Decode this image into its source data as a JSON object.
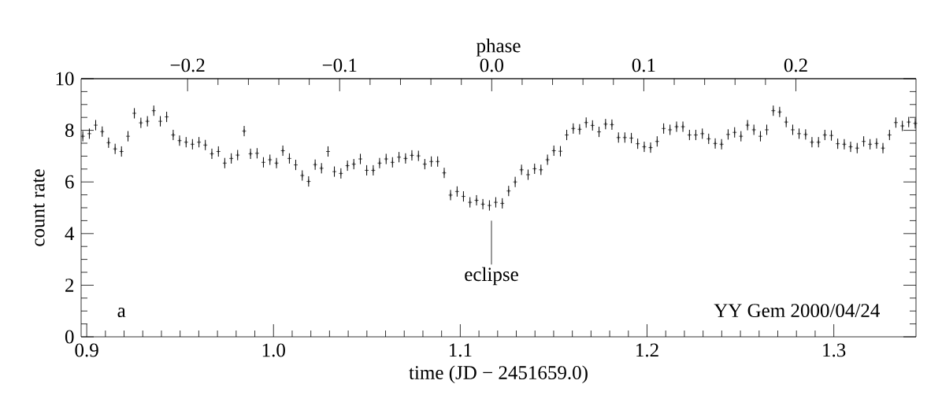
{
  "chart_data": {
    "type": "scatter",
    "xlabel": "time (JD − 2451659.0)",
    "ylabel": "count rate",
    "x2label": "phase",
    "xlim": [
      0.897,
      1.344
    ],
    "ylim": [
      0,
      10
    ],
    "xticks": [
      {
        "value": 0.9,
        "label": "0.9"
      },
      {
        "value": 1.0,
        "label": "1.0"
      },
      {
        "value": 1.1,
        "label": "1.1"
      },
      {
        "value": 1.2,
        "label": "1.2"
      },
      {
        "value": 1.3,
        "label": "1.3"
      }
    ],
    "yticks": [
      0,
      2,
      4,
      6,
      8,
      10
    ],
    "x2lim": [
      -0.27,
      0.279
    ],
    "x2ticks": [
      {
        "value": -0.2,
        "label": "−0.2"
      },
      {
        "value": -0.1,
        "label": "−0.1"
      },
      {
        "value": 0.0,
        "label": "0.0"
      },
      {
        "value": 0.1,
        "label": "0.1"
      },
      {
        "value": 0.2,
        "label": "0.2"
      }
    ],
    "marker": "cross",
    "color": "#000000",
    "x": [
      0.8979,
      0.9014,
      0.9048,
      0.9083,
      0.9117,
      0.9152,
      0.9186,
      0.9221,
      0.9255,
      0.929,
      0.9325,
      0.9359,
      0.9394,
      0.9428,
      0.9463,
      0.9497,
      0.9532,
      0.9566,
      0.9601,
      0.9635,
      0.967,
      0.9705,
      0.9739,
      0.9774,
      0.9808,
      0.9843,
      0.9877,
      0.9912,
      0.9946,
      0.9981,
      1.0016,
      1.005,
      1.0085,
      1.0119,
      1.0154,
      1.0188,
      1.0223,
      1.0257,
      1.0292,
      1.0326,
      1.0361,
      1.0396,
      1.043,
      1.0465,
      1.0499,
      1.0534,
      1.0568,
      1.0603,
      1.0637,
      1.0672,
      1.0707,
      1.0741,
      1.0776,
      1.081,
      1.0845,
      1.0879,
      1.0914,
      1.0948,
      1.0983,
      1.1017,
      1.1052,
      1.1087,
      1.1121,
      1.1156,
      1.119,
      1.1225,
      1.1259,
      1.1294,
      1.1328,
      1.1363,
      1.1398,
      1.1432,
      1.1467,
      1.1501,
      1.1536,
      1.157,
      1.1605,
      1.1639,
      1.1674,
      1.1708,
      1.1743,
      1.1778,
      1.1812,
      1.1847,
      1.1881,
      1.1916,
      1.195,
      1.1985,
      1.2019,
      1.2054,
      1.2089,
      1.2123,
      1.2158,
      1.2192,
      1.2227,
      1.2261,
      1.2296,
      1.233,
      1.2365,
      1.2399,
      1.2434,
      1.2469,
      1.2503,
      1.2538,
      1.2572,
      1.2607,
      1.2641,
      1.2676,
      1.271,
      1.2745,
      1.278,
      1.2814,
      1.2849,
      1.2883,
      1.2918,
      1.2952,
      1.2987,
      1.3021,
      1.3056,
      1.309,
      1.3125,
      1.316,
      1.3194,
      1.3229,
      1.3263,
      1.3298,
      1.3332,
      1.3367,
      1.3401,
      1.3436
    ],
    "values": [
      7.77,
      7.87,
      8.2,
      7.95,
      7.52,
      7.28,
      7.18,
      7.77,
      8.66,
      8.29,
      8.35,
      8.76,
      8.35,
      8.52,
      7.82,
      7.6,
      7.54,
      7.46,
      7.54,
      7.43,
      7.09,
      7.18,
      6.73,
      6.91,
      7.04,
      7.97,
      7.09,
      7.11,
      6.76,
      6.86,
      6.73,
      7.21,
      6.91,
      6.66,
      6.25,
      6.02,
      6.67,
      6.53,
      7.18,
      6.4,
      6.33,
      6.63,
      6.69,
      6.89,
      6.45,
      6.45,
      6.73,
      6.89,
      6.76,
      6.96,
      6.91,
      7.03,
      7.01,
      6.69,
      6.79,
      6.79,
      6.35,
      5.49,
      5.63,
      5.44,
      5.21,
      5.29,
      5.14,
      5.09,
      5.21,
      5.17,
      5.65,
      6.0,
      6.47,
      6.28,
      6.51,
      6.47,
      6.86,
      7.21,
      7.19,
      7.82,
      8.07,
      8.04,
      8.3,
      8.19,
      7.94,
      8.24,
      8.22,
      7.72,
      7.72,
      7.7,
      7.48,
      7.36,
      7.33,
      7.57,
      8.07,
      8.02,
      8.14,
      8.14,
      7.82,
      7.82,
      7.87,
      7.67,
      7.49,
      7.46,
      7.84,
      7.92,
      7.77,
      8.2,
      8.02,
      7.77,
      8.02,
      8.76,
      8.71,
      8.32,
      8.02,
      7.87,
      7.84,
      7.54,
      7.54,
      7.82,
      7.8,
      7.48,
      7.46,
      7.36,
      7.31,
      7.57,
      7.46,
      7.49,
      7.31,
      7.82,
      8.3,
      8.17,
      8.32,
      8.27
    ],
    "errors": [
      0.2,
      0.2,
      0.2,
      0.2,
      0.2,
      0.2,
      0.2,
      0.2,
      0.2,
      0.2,
      0.2,
      0.2,
      0.2,
      0.2,
      0.2,
      0.2,
      0.2,
      0.2,
      0.2,
      0.2,
      0.2,
      0.2,
      0.2,
      0.2,
      0.2,
      0.2,
      0.2,
      0.2,
      0.2,
      0.2,
      0.2,
      0.2,
      0.2,
      0.2,
      0.2,
      0.2,
      0.2,
      0.2,
      0.2,
      0.2,
      0.2,
      0.2,
      0.2,
      0.2,
      0.2,
      0.2,
      0.2,
      0.2,
      0.2,
      0.2,
      0.2,
      0.2,
      0.2,
      0.2,
      0.2,
      0.2,
      0.2,
      0.2,
      0.2,
      0.2,
      0.2,
      0.2,
      0.2,
      0.2,
      0.2,
      0.2,
      0.2,
      0.2,
      0.2,
      0.2,
      0.2,
      0.2,
      0.2,
      0.2,
      0.2,
      0.2,
      0.2,
      0.2,
      0.2,
      0.2,
      0.2,
      0.2,
      0.2,
      0.2,
      0.2,
      0.2,
      0.2,
      0.2,
      0.2,
      0.2,
      0.2,
      0.2,
      0.2,
      0.2,
      0.2,
      0.2,
      0.2,
      0.2,
      0.2,
      0.2,
      0.2,
      0.2,
      0.2,
      0.2,
      0.2,
      0.2,
      0.2,
      0.2,
      0.2,
      0.2,
      0.2,
      0.2,
      0.2,
      0.2,
      0.2,
      0.2,
      0.2,
      0.2,
      0.2,
      0.2,
      0.2,
      0.2,
      0.2,
      0.2,
      0.2,
      0.2,
      0.2,
      0.2,
      0.2,
      0.2
    ],
    "annotations": [
      "eclipse",
      "a",
      "YY Gem 2000/04/24"
    ]
  }
}
